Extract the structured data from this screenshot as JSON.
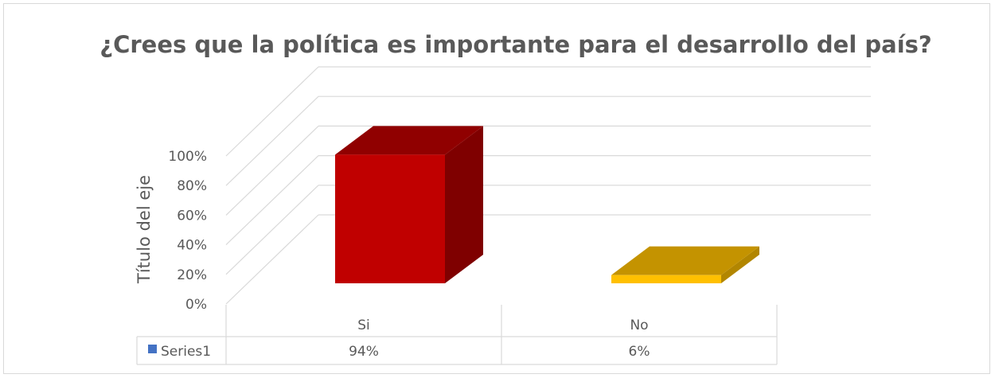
{
  "chart_data": {
    "type": "bar",
    "style": "3d-column",
    "title": "¿Crees que la política es importante para el desarrollo del país?",
    "ylabel": "Título del eje",
    "xlabel": "",
    "categories": [
      "Si",
      "No"
    ],
    "series": [
      {
        "name": "Series1",
        "values": [
          0.94,
          0.06
        ],
        "value_labels": [
          "94%",
          "6%"
        ],
        "legend_color": "#4472c4"
      }
    ],
    "bar_colors": [
      {
        "front": "#c00000",
        "side": "#7f0000",
        "top": "#900000"
      },
      {
        "front": "#ffc000",
        "side": "#b28600",
        "top": "#c49300"
      }
    ],
    "ylim": [
      0,
      1
    ],
    "yticks": [
      0,
      0.2,
      0.4,
      0.6,
      0.8,
      1.0
    ],
    "ytick_labels": [
      "0%",
      "20%",
      "40%",
      "60%",
      "80%",
      "100%"
    ],
    "grid": true,
    "legend": "data-table",
    "data_table": true
  }
}
